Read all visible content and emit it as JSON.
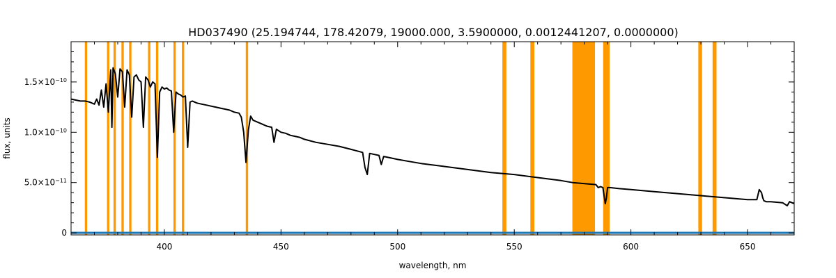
{
  "chart_data": {
    "type": "line",
    "title": "HD037490    (25.194744, 178.42079, 19000.000, 3.5900000, 0.0012441207, 0.0000000)",
    "xlabel": "wavelength, nm",
    "ylabel": "flux, units",
    "xlim": [
      360,
      670
    ],
    "ylim": [
      -2e-12,
      1.9e-10
    ],
    "x_ticks": [
      {
        "value": 400,
        "label": "400"
      },
      {
        "value": 450,
        "label": "450"
      },
      {
        "value": 500,
        "label": "500"
      },
      {
        "value": 550,
        "label": "550"
      },
      {
        "value": 600,
        "label": "600"
      },
      {
        "value": 650,
        "label": "650"
      }
    ],
    "y_ticks": [
      {
        "value": 0,
        "label": "0"
      },
      {
        "value": 5e-11,
        "label": "5.0×10",
        "exponent": "−11"
      },
      {
        "value": 1e-10,
        "label": "1.0×10",
        "exponent": "−10"
      },
      {
        "value": 1.5e-10,
        "label": "1.5×10",
        "exponent": "−10"
      }
    ],
    "masked_bands_nm": [
      [
        365.9,
        366.9
      ],
      [
        375.4,
        376.4
      ],
      [
        378.2,
        379.2
      ],
      [
        381.6,
        382.6
      ],
      [
        384.9,
        385.9
      ],
      [
        393.0,
        394.0
      ],
      [
        396.4,
        397.4
      ],
      [
        403.9,
        404.9
      ],
      [
        407.5,
        408.5
      ],
      [
        434.9,
        435.9
      ],
      [
        544.9,
        546.6
      ],
      [
        556.9,
        558.6
      ],
      [
        574.9,
        584.6
      ],
      [
        588.1,
        590.9
      ],
      [
        628.9,
        630.5
      ],
      [
        635.0,
        636.7
      ]
    ],
    "series": [
      {
        "role": "spectrum",
        "color": "#000000",
        "x": [
          360,
          362,
          364,
          366,
          368,
          370,
          371,
          372,
          373,
          374,
          375,
          376,
          377,
          377.5,
          378,
          379,
          380,
          381,
          382,
          383,
          384,
          385,
          386,
          387,
          388,
          389,
          390,
          391,
          392,
          393,
          394,
          395,
          396,
          397,
          398,
          399,
          400,
          401,
          402,
          403,
          404,
          405,
          406,
          407,
          408,
          409,
          410,
          411,
          412,
          414,
          416,
          418,
          420,
          422,
          424,
          426,
          428,
          430,
          432,
          433,
          434,
          435,
          436,
          437,
          438,
          440,
          442,
          444,
          446,
          447,
          448,
          450,
          452,
          454,
          456,
          458,
          460,
          465,
          470,
          475,
          480,
          485,
          486,
          487,
          488,
          490,
          492,
          493,
          494,
          496,
          500,
          505,
          510,
          520,
          530,
          540,
          550,
          560,
          570,
          575,
          585,
          586,
          587,
          588,
          589,
          589.5,
          590,
          591,
          595,
          600,
          610,
          620,
          630,
          640,
          650,
          654,
          655,
          656,
          656.5,
          657,
          658,
          660,
          665,
          667,
          668,
          670
        ],
        "y": [
          1.33e-10,
          1.32e-10,
          1.31e-10,
          1.31e-10,
          1.3e-10,
          1.28e-10,
          1.33e-10,
          1.27e-10,
          1.42e-10,
          1.25e-10,
          1.48e-10,
          1.2e-10,
          1.62e-10,
          1.05e-10,
          1.64e-10,
          1.58e-10,
          1.35e-10,
          1.63e-10,
          1.6e-10,
          1.25e-10,
          1.62e-10,
          1.57e-10,
          1.15e-10,
          1.55e-10,
          1.57e-10,
          1.52e-10,
          1.5e-10,
          1.05e-10,
          1.55e-10,
          1.52e-10,
          1.45e-10,
          1.5e-10,
          1.48e-10,
          7.5e-11,
          1.4e-10,
          1.45e-10,
          1.43e-10,
          1.44e-10,
          1.42e-10,
          1.41e-10,
          1e-10,
          1.4e-10,
          1.38e-10,
          1.37e-10,
          1.35e-10,
          1.36e-10,
          8.5e-11,
          1.3e-10,
          1.31e-10,
          1.29e-10,
          1.28e-10,
          1.27e-10,
          1.26e-10,
          1.25e-10,
          1.24e-10,
          1.23e-10,
          1.22e-10,
          1.2e-10,
          1.19e-10,
          1.15e-10,
          1e-10,
          7e-11,
          1.02e-10,
          1.16e-10,
          1.12e-10,
          1.1e-10,
          1.08e-10,
          1.06e-10,
          1.05e-10,
          9e-11,
          1.03e-10,
          1e-10,
          9.9e-11,
          9.7e-11,
          9.6e-11,
          9.5e-11,
          9.3e-11,
          9e-11,
          8.8e-11,
          8.6e-11,
          8.3e-11,
          8e-11,
          6.5e-11,
          5.8e-11,
          7.9e-11,
          7.8e-11,
          7.7e-11,
          6.8e-11,
          7.6e-11,
          7.5e-11,
          7.3e-11,
          7.1e-11,
          6.9e-11,
          6.6e-11,
          6.3e-11,
          6e-11,
          5.8e-11,
          5.5e-11,
          5.2e-11,
          5e-11,
          4.8e-11,
          4.5e-11,
          4.6e-11,
          4.5e-11,
          2.9e-11,
          3.5e-11,
          4.5e-11,
          4.5e-11,
          4.4e-11,
          4.3e-11,
          4.1e-11,
          3.9e-11,
          3.7e-11,
          3.5e-11,
          3.3e-11,
          3.3e-11,
          4.3e-11,
          4e-11,
          3.5e-11,
          3.2e-11,
          3.1e-11,
          3.1e-11,
          3e-11,
          2.7e-11,
          3.1e-11,
          2.9e-11
        ]
      },
      {
        "role": "error",
        "color": "#1f77b4",
        "x": [
          360,
          670
        ],
        "y": [
          1e-13,
          1e-13
        ]
      }
    ]
  },
  "colors": {
    "mask": "#ff9900",
    "spectrum": "#000000",
    "error": "#1f77b4",
    "frame": "#000000"
  }
}
